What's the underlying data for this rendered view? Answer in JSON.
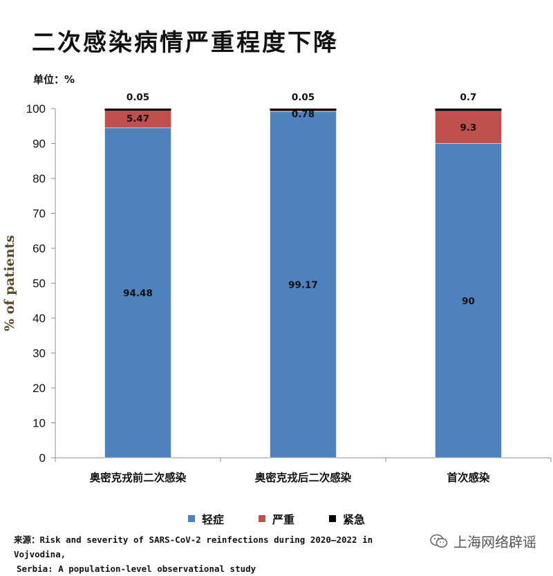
{
  "title": "二次感染病情严重程度下降",
  "unit_label": "单位：%",
  "chart_data": {
    "type": "bar",
    "stacked": true,
    "categories": [
      "奥密克戎前二次感染",
      "奥密克戎后二次感染",
      "首次感染"
    ],
    "series": [
      {
        "name": "轻症",
        "color": "#4F81BD",
        "values": [
          94.48,
          99.17,
          90
        ],
        "labels": [
          "94.48",
          "99.17",
          "90"
        ]
      },
      {
        "name": "严重",
        "color": "#C0504D",
        "values": [
          5.47,
          0.78,
          9.3
        ],
        "labels": [
          "5.47",
          "0.78",
          "9.3"
        ]
      },
      {
        "name": "紧急",
        "color": "#000000",
        "values": [
          0.05,
          0.05,
          0.7
        ],
        "labels": [
          "0.05",
          "0.05",
          "0.7"
        ]
      }
    ],
    "ylabel": "% of patients",
    "ylim": [
      0,
      100
    ],
    "yticks": [
      "0",
      "10",
      "20",
      "30",
      "40",
      "50",
      "60",
      "70",
      "80",
      "90",
      "100"
    ],
    "grid": false,
    "legend_position": "bottom"
  },
  "source": {
    "line1": "来源：Risk and severity of SARS-CoV-2 reinfections during 2020–2022 in Vojvodina,",
    "line2": "Serbia: A population-level observational study"
  },
  "watermark": {
    "text": "上海网络辟谣",
    "icon": "wechat-icon"
  }
}
